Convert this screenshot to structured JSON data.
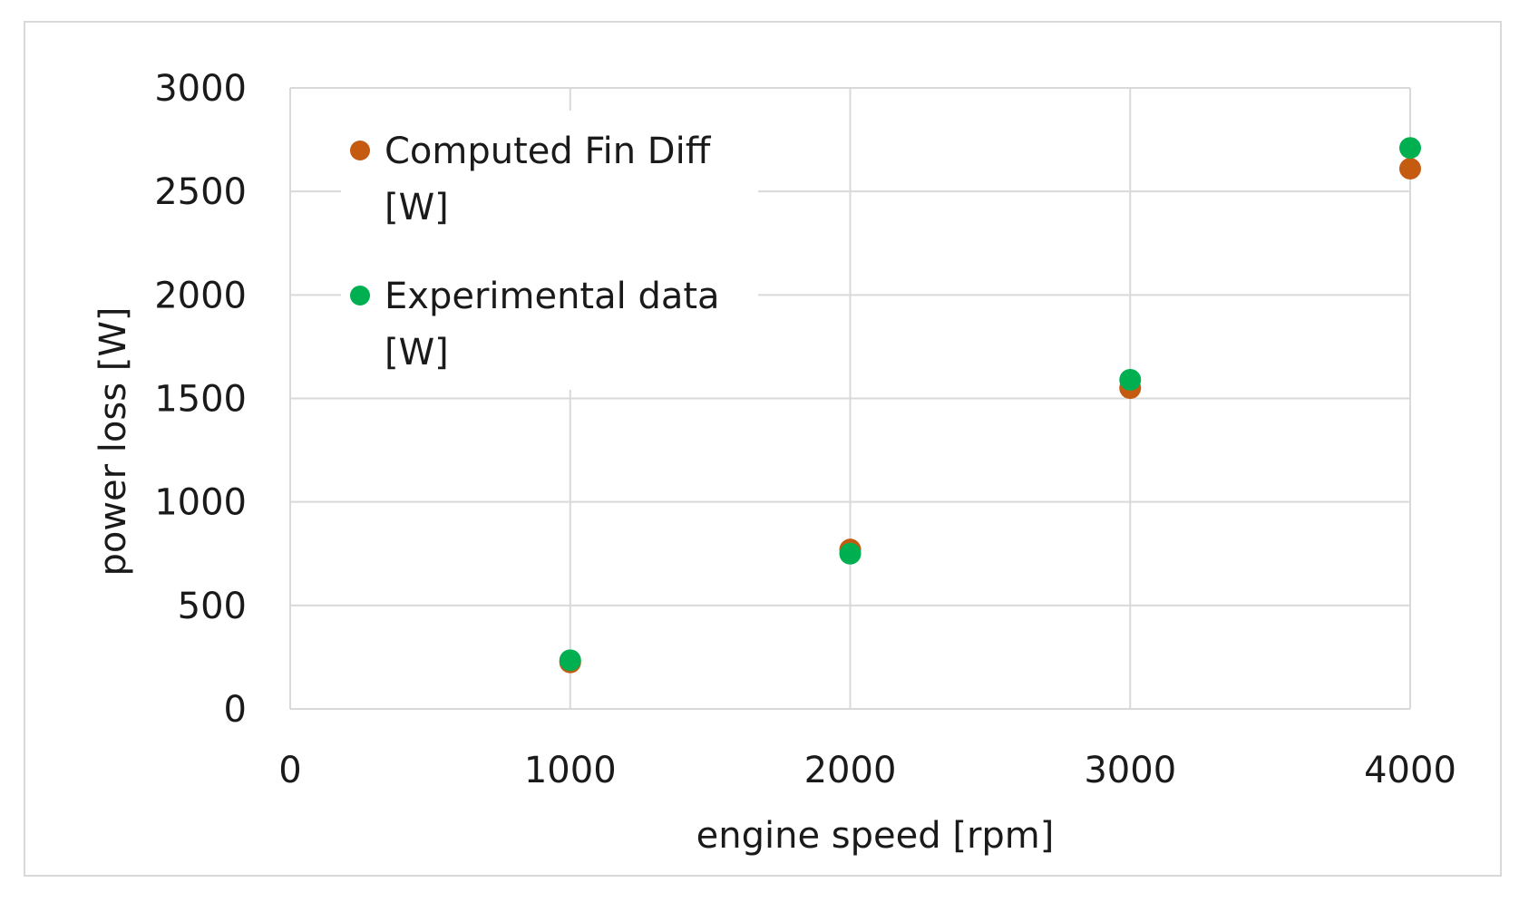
{
  "colors": {
    "computed": "#c55a11",
    "experimental": "#00b050",
    "grid": "#d9d9d9",
    "frame": "#d9d9d9"
  },
  "chart_data": {
    "type": "scatter",
    "title": "",
    "xlabel": "engine speed [rpm]",
    "ylabel": "power loss [W]",
    "xlim": [
      0,
      4000
    ],
    "ylim": [
      0,
      3000
    ],
    "xticks": [
      0,
      1000,
      2000,
      3000,
      4000
    ],
    "yticks": [
      0,
      500,
      1000,
      1500,
      2000,
      2500,
      3000
    ],
    "xtick_labels": [
      "0",
      "1000",
      "2000",
      "3000",
      "4000"
    ],
    "ytick_labels": [
      "0",
      "500",
      "1000",
      "1500",
      "2000",
      "2500",
      "3000"
    ],
    "grid": true,
    "legend_position": "top-left",
    "series": [
      {
        "name": "Computed Fin Diff [W]",
        "legend_lines": [
          "Computed Fin Diff",
          "[W]"
        ],
        "color_key": "computed",
        "points": [
          {
            "x": 1000,
            "y": 225
          },
          {
            "x": 2000,
            "y": 770
          },
          {
            "x": 3000,
            "y": 1550
          },
          {
            "x": 4000,
            "y": 2610
          }
        ]
      },
      {
        "name": "Experimental data [W]",
        "legend_lines": [
          "Experimental data",
          "[W]"
        ],
        "color_key": "experimental",
        "points": [
          {
            "x": 1000,
            "y": 235
          },
          {
            "x": 2000,
            "y": 750
          },
          {
            "x": 3000,
            "y": 1590
          },
          {
            "x": 4000,
            "y": 2710
          }
        ]
      }
    ]
  }
}
